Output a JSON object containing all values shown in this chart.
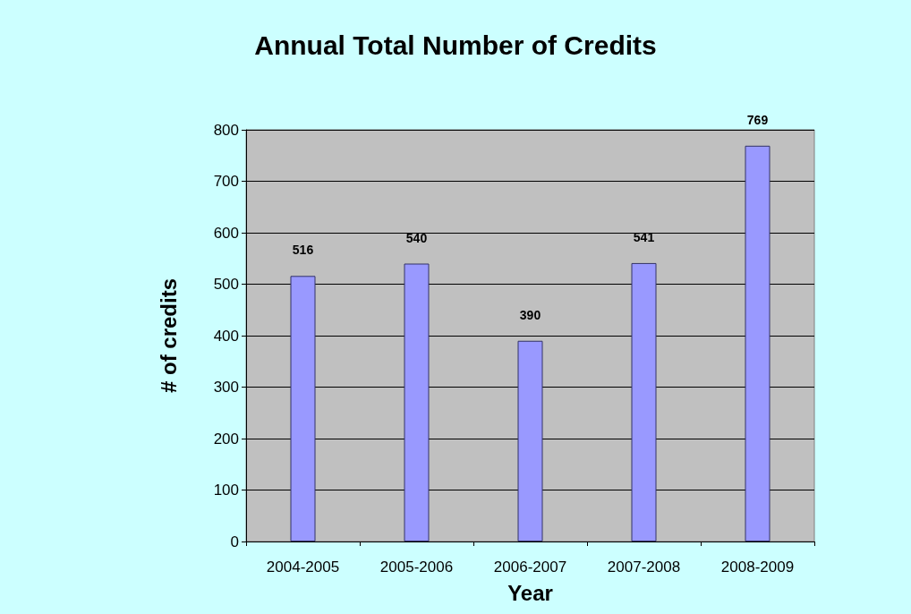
{
  "chart_data": {
    "type": "bar",
    "title": "Annual Total Number of Credits",
    "xlabel": "Year",
    "ylabel": "# of credits",
    "categories": [
      "2004-2005",
      "2005-2006",
      "2006-2007",
      "2007-2008",
      "2008-2009"
    ],
    "values": [
      516,
      540,
      390,
      541,
      769
    ],
    "color": "#9999ff",
    "ylim": [
      0,
      800
    ],
    "yticks": [
      0,
      100,
      200,
      300,
      400,
      500,
      600,
      700,
      800
    ],
    "grid": "y",
    "data_labels": true
  }
}
